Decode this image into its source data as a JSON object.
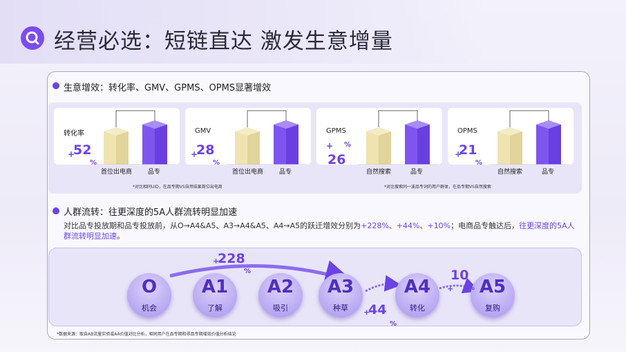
{
  "title": "经营必选：短链直达 激发生意增量",
  "section1": {
    "heading": "生意增效：转化率、GMV、GPMS、OPMS显著增效",
    "cards": [
      {
        "metric": "转化率",
        "sign": "+",
        "value": 52,
        "unit": "%",
        "labels": [
          "首位出电商",
          "品专"
        ]
      },
      {
        "metric": "GMV",
        "sign": "+",
        "value": 28,
        "unit": "%",
        "labels": [
          "首位出电商",
          "品专"
        ]
      },
      {
        "metric": "GPMS",
        "sign": "+",
        "value": 26,
        "unit": "%",
        "labels": [
          "自然搜索",
          "品专"
        ]
      },
      {
        "metric": "OPMS",
        "sign": "+",
        "value": 21,
        "unit": "%",
        "labels": [
          "自然搜索",
          "品专"
        ]
      }
    ],
    "notes": [
      "*对比相同UID，在品专期VS自然结果首位出电商",
      "*对比搜索同一波品专词的用户群体，在品专期VS自然搜索"
    ]
  },
  "section2": {
    "heading": "人群流转：往更深度的5A人群流转明显加速",
    "body": [
      "对比品专投放期和品专投放前，从O→A4&A5、A3→A4&A5、A4→A5的跃迁增效分别为",
      "+228%、+44%、+10%",
      "；电商品专触达后，",
      "往更深度的5A人群流转明显加速",
      "。"
    ],
    "stages": [
      {
        "code": "O",
        "label": "机会"
      },
      {
        "code": "A1",
        "label": "了解"
      },
      {
        "code": "A2",
        "label": "吸引"
      },
      {
        "code": "A3",
        "label": "种草"
      },
      {
        "code": "A4",
        "label": "转化"
      },
      {
        "code": "A5",
        "label": "复购"
      }
    ],
    "lifts": [
      {
        "sign": "+",
        "value": 228,
        "unit": "%"
      },
      {
        "sign": "+",
        "value": 44,
        "unit": "%"
      },
      {
        "sign": "+",
        "value": 10,
        "unit": "%"
      }
    ],
    "source": "*数据来源：取自AB流量实验或AA价值对比分析，相同用户在品专期和非品专期增效价值分析结论"
  }
}
